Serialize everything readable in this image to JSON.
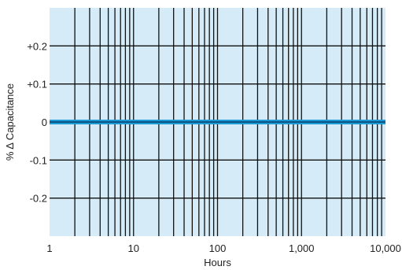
{
  "chart_data": {
    "type": "line",
    "title": "",
    "xlabel": "Hours",
    "ylabel": "% Δ Capacitance",
    "x_scale": "log",
    "xlim": [
      1,
      10000
    ],
    "ylim": [
      -0.3,
      0.3
    ],
    "grid": true,
    "x_ticks": [
      {
        "value": 1,
        "label": "1"
      },
      {
        "value": 10,
        "label": "10"
      },
      {
        "value": 100,
        "label": "100"
      },
      {
        "value": 1000,
        "label": "1,000"
      },
      {
        "value": 10000,
        "label": "10,000"
      }
    ],
    "y_ticks": [
      {
        "value": 0.2,
        "label": "+0.2"
      },
      {
        "value": 0.1,
        "label": "+0.1"
      },
      {
        "value": 0,
        "label": "0"
      },
      {
        "value": -0.1,
        "label": "-0.1"
      },
      {
        "value": -0.2,
        "label": "-0.2"
      }
    ],
    "series": [
      {
        "x": [
          1,
          10000
        ],
        "y": [
          0,
          0
        ]
      }
    ]
  },
  "colors": {
    "plot_background": "#d5ecf8",
    "grid": "#111111",
    "series_line": "#1a9ad6",
    "series_core": "#0b3c66"
  }
}
